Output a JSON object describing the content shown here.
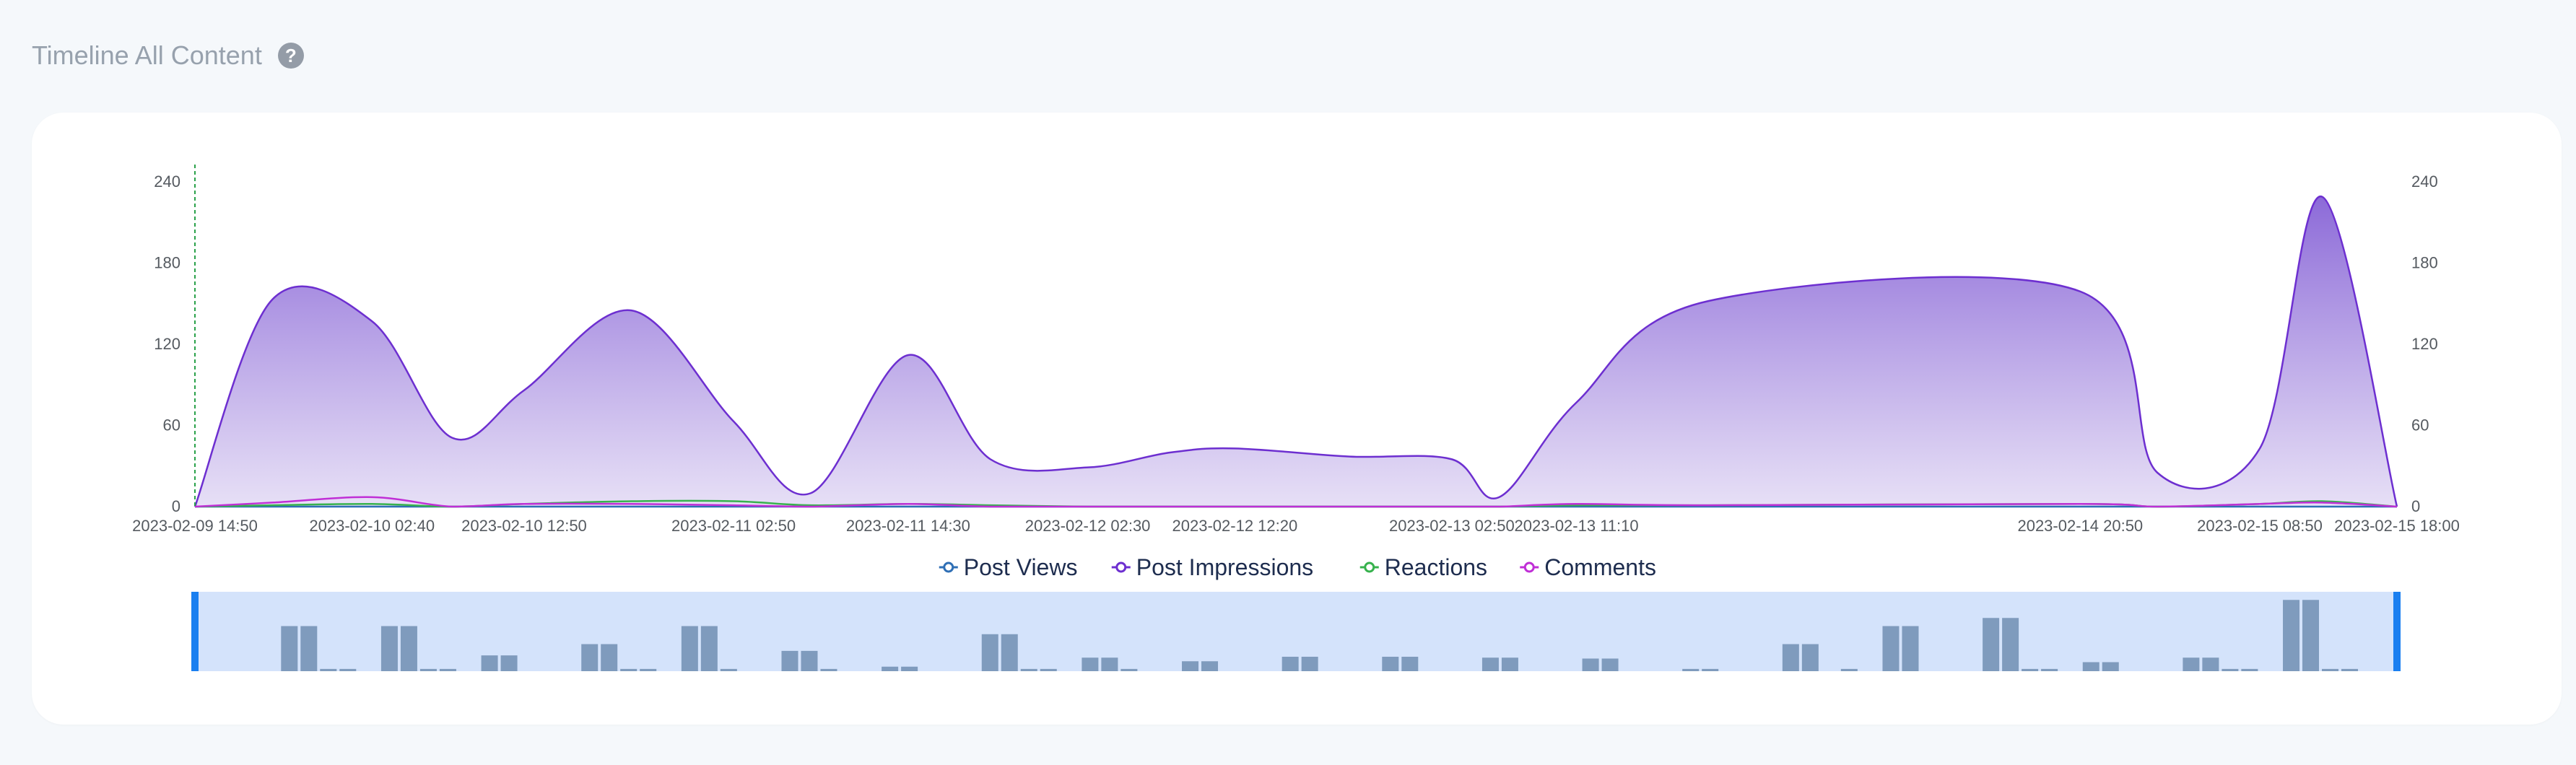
{
  "page": {
    "title": "Timeline All Content",
    "help_icon": "question-mark-icon"
  },
  "colors": {
    "post_views": "#2f6fb5",
    "post_impressions": "#6d2fd0",
    "reactions": "#37b24d",
    "comments": "#c02fd6",
    "area_top": "#8c6ad8",
    "area_bottom": "#e4dcf5",
    "brush_fill": "#d4e3fb",
    "brush_handle": "#1a7ff0",
    "brush_bars": "#7f9bbd",
    "marker_line": "#2aa14a"
  },
  "chart_data": {
    "type": "area",
    "x": [
      "2023-02-09 14:50",
      "2023-02-09 20:00",
      "2023-02-10 02:40",
      "2023-02-10 08:00",
      "2023-02-10 12:50",
      "2023-02-10 20:00",
      "2023-02-11 02:50",
      "2023-02-11 08:00",
      "2023-02-11 14:30",
      "2023-02-11 20:00",
      "2023-02-12 02:30",
      "2023-02-12 08:00",
      "2023-02-12 12:20",
      "2023-02-12 20:00",
      "2023-02-13 02:50",
      "2023-02-13 06:00",
      "2023-02-13 11:10",
      "2023-02-13 20:00",
      "2023-02-14 20:50",
      "2023-02-15 02:00",
      "2023-02-15 08:50",
      "2023-02-15 13:00",
      "2023-02-15 18:00"
    ],
    "x_tick_labels": [
      "2023-02-09 14:50",
      "2023-02-10 02:40",
      "2023-02-10 12:50",
      "2023-02-11 02:50",
      "2023-02-11 14:30",
      "2023-02-12 02:30",
      "2023-02-12 12:20",
      "2023-02-13 02:50",
      "2023-02-13 11:10",
      "2023-02-14 20:50",
      "2023-02-15 08:50",
      "2023-02-15 18:00"
    ],
    "y_ticks": [
      0,
      60,
      120,
      180,
      240
    ],
    "ylim": [
      0,
      240
    ],
    "series": [
      {
        "name": "Post Views",
        "values": [
          0,
          0,
          0,
          0,
          0,
          0,
          0,
          0,
          0,
          0,
          0,
          0,
          0,
          0,
          0,
          0,
          0,
          0,
          0,
          0,
          0,
          0,
          0
        ]
      },
      {
        "name": "Post Impressions",
        "values": [
          0,
          153,
          137,
          51,
          86,
          145,
          63,
          10,
          112,
          35,
          29,
          40,
          43,
          37,
          35,
          7,
          77,
          152,
          159,
          25,
          43,
          229,
          0
        ]
      },
      {
        "name": "Reactions",
        "values": [
          0,
          1,
          2,
          0,
          2,
          4,
          4,
          1,
          2,
          1,
          0,
          0,
          0,
          0,
          0,
          0,
          1,
          1,
          2,
          0,
          2,
          4,
          0
        ]
      },
      {
        "name": "Comments",
        "values": [
          0,
          3,
          7,
          0,
          2,
          2,
          1,
          0,
          2,
          0,
          0,
          0,
          0,
          0,
          0,
          0,
          2,
          1,
          2,
          0,
          2,
          3,
          0
        ]
      }
    ],
    "grid": false,
    "legend_position": "bottom-center",
    "brush_bars": [
      [
        1.0,
        1.0,
        0.05,
        0.05
      ],
      [
        1.0,
        1.0,
        0.05,
        0.05
      ],
      [
        0.35,
        0.35,
        0,
        0
      ],
      [
        0.6,
        0.6,
        0.05,
        0.05
      ],
      [
        1.0,
        1.0,
        0.05,
        0
      ],
      [
        0.45,
        0.45,
        0.05,
        0
      ],
      [
        0.1,
        0.1,
        0,
        0
      ],
      [
        0.82,
        0.82,
        0.05,
        0.05
      ],
      [
        0.3,
        0.3,
        0.05,
        0
      ],
      [
        0.22,
        0.22,
        0,
        0
      ],
      [
        0.32,
        0.32,
        0,
        0
      ],
      [
        0.32,
        0.32,
        0,
        0
      ],
      [
        0.3,
        0.3,
        0,
        0
      ],
      [
        0.28,
        0.28,
        0,
        0
      ],
      [
        0.05,
        0.05,
        0,
        0
      ],
      [
        0.6,
        0.6,
        0,
        0.05
      ],
      [
        1.0,
        1.0,
        0,
        0
      ],
      [
        1.18,
        1.18,
        0.05,
        0.05
      ],
      [
        0.2,
        0.2,
        0,
        0
      ],
      [
        0.3,
        0.3,
        0.05,
        0.05
      ],
      [
        1.58,
        1.58,
        0.05,
        0.05
      ]
    ]
  }
}
